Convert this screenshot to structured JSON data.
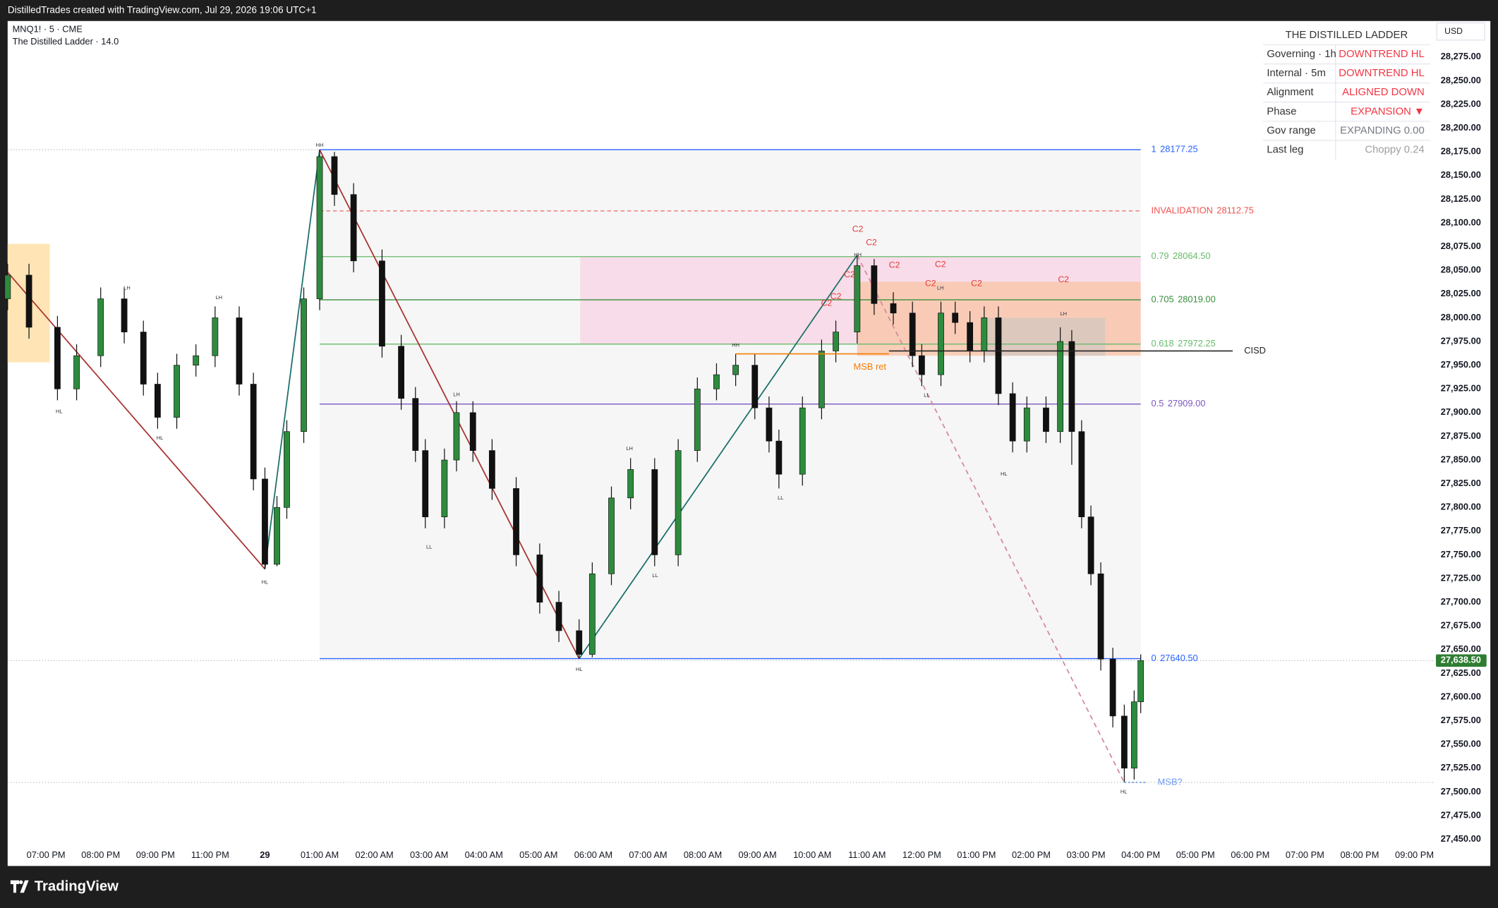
{
  "header": {
    "credit": "DistilledTrades created with TradingView.com, Jul 29, 2026 19:06 UTC+1",
    "symbol": "MNQ1! · 5 · CME",
    "indicator": "The Distilled Ladder · 14.0",
    "currency": "USD"
  },
  "footer": {
    "brand": "TradingView"
  },
  "table": {
    "title": "THE DISTILLED LADDER",
    "rows": [
      [
        "Governing · 1h",
        "DOWNTREND  HL"
      ],
      [
        "Internal · 5m",
        "DOWNTREND  HL"
      ],
      [
        "Alignment",
        "ALIGNED DOWN"
      ],
      [
        "Phase",
        "EXPANSION ▼"
      ],
      [
        "Gov range",
        "EXPANDING  0.00"
      ],
      [
        "Last leg",
        "Choppy 0.24"
      ]
    ],
    "value_colors": [
      "#f23645",
      "#f23645",
      "#f23645",
      "#f23645",
      "#787b86",
      "#9e9e9e"
    ]
  },
  "chart_data": {
    "type": "candlestick",
    "up_color": "#2e8b3e",
    "down_color": "#111111",
    "xlim": [
      -0.7,
      25.34
    ],
    "ylim": [
      27444,
      28313
    ],
    "xticks": [
      {
        "value": 0,
        "label": "07:00 PM"
      },
      {
        "value": 1,
        "label": "08:00 PM"
      },
      {
        "value": 2,
        "label": "09:00 PM"
      },
      {
        "value": 3,
        "label": "11:00 PM"
      },
      {
        "value": 4,
        "label": "29"
      },
      {
        "value": 5,
        "label": "01:00 AM"
      },
      {
        "value": 6,
        "label": "02:00 AM"
      },
      {
        "value": 7,
        "label": "03:00 AM"
      },
      {
        "value": 8,
        "label": "04:00 AM"
      },
      {
        "value": 9,
        "label": "05:00 AM"
      },
      {
        "value": 10,
        "label": "06:00 AM"
      },
      {
        "value": 11,
        "label": "07:00 AM"
      },
      {
        "value": 12,
        "label": "08:00 AM"
      },
      {
        "value": 13,
        "label": "09:00 AM"
      },
      {
        "value": 14,
        "label": "10:00 AM"
      },
      {
        "value": 15,
        "label": "11:00 AM"
      },
      {
        "value": 16,
        "label": "12:00 PM"
      },
      {
        "value": 17,
        "label": "01:00 PM"
      },
      {
        "value": 18,
        "label": "02:00 PM"
      },
      {
        "value": 19,
        "label": "03:00 PM"
      },
      {
        "value": 20,
        "label": "04:00 PM"
      },
      {
        "value": 21,
        "label": "05:00 PM"
      },
      {
        "value": 22,
        "label": "06:00 PM"
      },
      {
        "value": 23,
        "label": "07:00 PM"
      },
      {
        "value": 24,
        "label": "08:00 PM"
      },
      {
        "value": 25,
        "label": "09:00 PM"
      }
    ],
    "yticks": [
      {
        "value": 27450,
        "label": "27,450.00"
      },
      {
        "value": 27475,
        "label": "27,475.00"
      },
      {
        "value": 27500,
        "label": "27,500.00"
      },
      {
        "value": 27525,
        "label": "27,525.00"
      },
      {
        "value": 27550,
        "label": "27,550.00"
      },
      {
        "value": 27575,
        "label": "27,575.00"
      },
      {
        "value": 27600,
        "label": "27,600.00"
      },
      {
        "value": 27625,
        "label": "27,625.00"
      },
      {
        "value": 27650,
        "label": "27,650.00"
      },
      {
        "value": 27675,
        "label": "27,675.00"
      },
      {
        "value": 27700,
        "label": "27,700.00"
      },
      {
        "value": 27725,
        "label": "27,725.00"
      },
      {
        "value": 27750,
        "label": "27,750.00"
      },
      {
        "value": 27775,
        "label": "27,775.00"
      },
      {
        "value": 27800,
        "label": "27,800.00"
      },
      {
        "value": 27825,
        "label": "27,825.00"
      },
      {
        "value": 27850,
        "label": "27,850.00"
      },
      {
        "value": 27875,
        "label": "27,875.00"
      },
      {
        "value": 27900,
        "label": "27,900.00"
      },
      {
        "value": 27925,
        "label": "27,925.00"
      },
      {
        "value": 27950,
        "label": "27,950.00"
      },
      {
        "value": 27975,
        "label": "27,975.00"
      },
      {
        "value": 28000,
        "label": "28,000.00"
      },
      {
        "value": 28025,
        "label": "28,025.00"
      },
      {
        "value": 28050,
        "label": "28,050.00"
      },
      {
        "value": 28075,
        "label": "28,075.00"
      },
      {
        "value": 28100,
        "label": "28,100.00"
      },
      {
        "value": 28125,
        "label": "28,125.00"
      },
      {
        "value": 28150,
        "label": "28,150.00"
      },
      {
        "value": 28175,
        "label": "28,175.00"
      },
      {
        "value": 28200,
        "label": "28,200.00"
      },
      {
        "value": 28225,
        "label": "28,225.00"
      },
      {
        "value": 28250,
        "label": "28,250.00"
      },
      {
        "value": 28275,
        "label": "28,275.00"
      }
    ],
    "last_price": {
      "value": 27638.5,
      "label": "27,638.50",
      "color": "#2e7d32"
    },
    "x": [
      -0.7,
      -0.31,
      0.21,
      0.56,
      1.0,
      1.43,
      1.78,
      2.04,
      2.39,
      2.74,
      3.09,
      3.53,
      3.79,
      4.0,
      4.22,
      4.4,
      4.71,
      5.0,
      5.27,
      5.62,
      6.14,
      6.49,
      6.75,
      6.93,
      7.28,
      7.5,
      7.8,
      8.15,
      8.59,
      9.02,
      9.37,
      9.74,
      9.98,
      10.33,
      10.68,
      11.12,
      11.55,
      11.9,
      12.25,
      12.6,
      12.95,
      13.21,
      13.39,
      13.82,
      14.17,
      14.43,
      14.82,
      15.13,
      15.48,
      15.83,
      16.0,
      16.35,
      16.61,
      16.88,
      17.14,
      17.4,
      17.66,
      17.92,
      18.27,
      18.53,
      18.74,
      18.92,
      19.09,
      19.27,
      19.49,
      19.7,
      19.88,
      20.0
    ],
    "open": [
      28020,
      28045,
      27990,
      27925,
      27960,
      28020,
      27985,
      27930,
      27895,
      27950,
      27960,
      28000,
      27930,
      27830,
      27740,
      27800,
      27880,
      28020,
      28170,
      28130,
      28060,
      27970,
      27915,
      27860,
      27790,
      27850,
      27900,
      27860,
      27820,
      27750,
      27700,
      27670,
      27645,
      27730,
      27810,
      27840,
      27750,
      27860,
      27925,
      27940,
      27950,
      27905,
      27870,
      27835,
      27905,
      27965,
      27985,
      28055,
      28015,
      28005,
      27960,
      27940,
      28005,
      27995,
      27965,
      28000,
      27920,
      27870,
      27905,
      27880,
      27975,
      27880,
      27790,
      27730,
      27640,
      27580,
      27525,
      27595
    ],
    "high": [
      28057,
      28057,
      28002,
      27972,
      28032,
      28032,
      27997,
      27942,
      27962,
      27972,
      28012,
      28012,
      27942,
      27842,
      27812,
      27892,
      28032,
      28177.25,
      28175,
      28142,
      28072,
      27982,
      27927,
      27872,
      27862,
      27912,
      27912,
      27872,
      27832,
      27762,
      27712,
      27682,
      27742,
      27822,
      27852,
      27852,
      27872,
      27937,
      27952,
      27962,
      27962,
      27917,
      27882,
      27917,
      27977,
      27997,
      28066,
      28062,
      28027,
      28017,
      27972,
      28017,
      28017,
      28007,
      28012,
      28012,
      27932,
      27917,
      27917,
      27990,
      27987,
      27892,
      27802,
      27742,
      27652,
      27592,
      27607,
      27645
    ],
    "low": [
      28008,
      27978,
      27913,
      27913,
      27948,
      27973,
      27918,
      27883,
      27883,
      27938,
      27948,
      27918,
      27818,
      27735,
      27738,
      27788,
      27868,
      28008,
      28118,
      28048,
      27958,
      27903,
      27848,
      27778,
      27778,
      27838,
      27848,
      27808,
      27738,
      27688,
      27658,
      27640.5,
      27642,
      27718,
      27798,
      27738,
      27738,
      27848,
      27913,
      27928,
      27893,
      27858,
      27820,
      27823,
      27893,
      27953,
      27973,
      28003,
      27993,
      27948,
      27928,
      27928,
      27983,
      27953,
      27953,
      27908,
      27858,
      27858,
      27868,
      27868,
      27845,
      27778,
      27718,
      27628,
      27568,
      27510,
      27513,
      27583
    ],
    "close": [
      28045,
      27990,
      27925,
      27960,
      28020,
      27985,
      27930,
      27895,
      27950,
      27960,
      28000,
      27930,
      27830,
      27740,
      27800,
      27880,
      28020,
      28170,
      28130,
      28060,
      27970,
      27915,
      27860,
      27790,
      27850,
      27900,
      27860,
      27820,
      27750,
      27700,
      27670,
      27645,
      27730,
      27810,
      27840,
      27750,
      27860,
      27925,
      27940,
      27950,
      27905,
      27870,
      27835,
      27905,
      27965,
      27985,
      28055,
      28015,
      28005,
      27960,
      27940,
      28005,
      27995,
      27965,
      28000,
      27920,
      27870,
      27905,
      27880,
      27975,
      27880,
      27790,
      27730,
      27640,
      27580,
      27525,
      27595,
      27638.5
    ],
    "fib_range": {
      "x0": 5.0,
      "x1": 20.0,
      "top": 28177.25,
      "bottom": 27640.5,
      "color": "#f6f6f6"
    },
    "levels": [
      {
        "level": "1",
        "value": 28177.25,
        "value_label": "28177.25",
        "color": "#2962ff",
        "style": "solid"
      },
      {
        "level": "INVALIDATION",
        "value": 28112.75,
        "value_label": "28112.75",
        "color": "#ef5350",
        "style": "dashed"
      },
      {
        "level": "0.79",
        "value": 28064.5,
        "value_label": "28064.50",
        "color": "#66bb6a",
        "style": "solid"
      },
      {
        "level": "0.705",
        "value": 28019,
        "value_label": "28019.00",
        "color": "#388e3c",
        "style": "solid"
      },
      {
        "level": "0.618",
        "value": 27972.25,
        "value_label": "27972.25",
        "color": "#66bb6a",
        "style": "solid"
      },
      {
        "level": "0.5",
        "value": 27909,
        "value_label": "27909.00",
        "color": "#7e57c2",
        "style": "solid"
      },
      {
        "level": "0",
        "value": 27640.5,
        "value_label": "27640.50",
        "color": "#2962ff",
        "style": "solid"
      }
    ],
    "zones": [
      {
        "x0": -0.7,
        "x1": 0.07,
        "top": 28078,
        "bottom": 27953,
        "color": "#ffe0a8"
      },
      {
        "x0": 9.76,
        "x1": 20.0,
        "top": 28064.5,
        "bottom": 27972.25,
        "color": "#f8d7e6"
      },
      {
        "x0": 14.82,
        "x1": 20.0,
        "top": 28038,
        "bottom": 27960,
        "color": "#f9c8ae"
      },
      {
        "x0": 17.14,
        "x1": 19.35,
        "top": 28000,
        "bottom": 27960,
        "color": "#d8c8c0"
      }
    ],
    "markers": [
      {
        "label": "CISD",
        "value": 27965,
        "x0": 15.4,
        "x1": 21.68,
        "color": "#222222"
      },
      {
        "label": "MSB ret",
        "value": 27962,
        "x0": 12.6,
        "x1": 15.4,
        "color": "#f57c00"
      },
      {
        "label": "MSB?",
        "value": 27510,
        "x0": 19.7,
        "x1": 20.1,
        "color": "#6d9bf1"
      }
    ],
    "zigzag": {
      "x": [
        -0.7,
        4.0,
        5.0,
        9.74,
        14.82
      ],
      "y": [
        28048,
        27735,
        28177.25,
        27640.5,
        28066
      ],
      "up_color": "#1a6f6a",
      "down_color": "#a83232"
    },
    "projection": {
      "x": [
        14.82,
        19.7
      ],
      "y": [
        28066,
        27510
      ],
      "color": "#d48a9a"
    },
    "swings": [
      {
        "label": "HL",
        "x": 0.24,
        "y": 27901
      },
      {
        "label": "LH",
        "x": 1.48,
        "y": 28031
      },
      {
        "label": "HL",
        "x": 2.08,
        "y": 27873
      },
      {
        "label": "LH",
        "x": 3.16,
        "y": 28021
      },
      {
        "label": "HL",
        "x": 4.0,
        "y": 27721
      },
      {
        "label": "HH",
        "x": 5.0,
        "y": 28182
      },
      {
        "label": "LL",
        "x": 7.0,
        "y": 27758
      },
      {
        "label": "LH",
        "x": 7.5,
        "y": 27919
      },
      {
        "label": "HL",
        "x": 9.74,
        "y": 27629
      },
      {
        "label": "LH",
        "x": 10.66,
        "y": 27862
      },
      {
        "label": "LL",
        "x": 11.13,
        "y": 27728
      },
      {
        "label": "HH",
        "x": 12.6,
        "y": 27971
      },
      {
        "label": "LL",
        "x": 13.42,
        "y": 27810
      },
      {
        "label": "HH",
        "x": 14.83,
        "y": 28066
      },
      {
        "label": "LL",
        "x": 16.09,
        "y": 27918
      },
      {
        "label": "LH",
        "x": 16.34,
        "y": 28031
      },
      {
        "label": "HL",
        "x": 17.5,
        "y": 27835
      },
      {
        "label": "LH",
        "x": 18.59,
        "y": 28004
      },
      {
        "label": "HL",
        "x": 19.69,
        "y": 27500
      }
    ],
    "c2_color": "#e53935",
    "c2": [
      {
        "label": "C2",
        "x": 14.83,
        "y": 28093
      },
      {
        "label": "C2",
        "x": 15.08,
        "y": 28079
      },
      {
        "label": "C2",
        "x": 15.5,
        "y": 28055
      },
      {
        "label": "C2",
        "x": 16.34,
        "y": 28056
      },
      {
        "label": "C2",
        "x": 14.68,
        "y": 28045
      },
      {
        "label": "C2",
        "x": 16.16,
        "y": 28036
      },
      {
        "label": "C2",
        "x": 17.0,
        "y": 28036
      },
      {
        "label": "C2",
        "x": 18.59,
        "y": 28040
      },
      {
        "label": "C2",
        "x": 14.43,
        "y": 28022
      },
      {
        "label": "C2",
        "x": 14.26,
        "y": 28015
      }
    ]
  }
}
